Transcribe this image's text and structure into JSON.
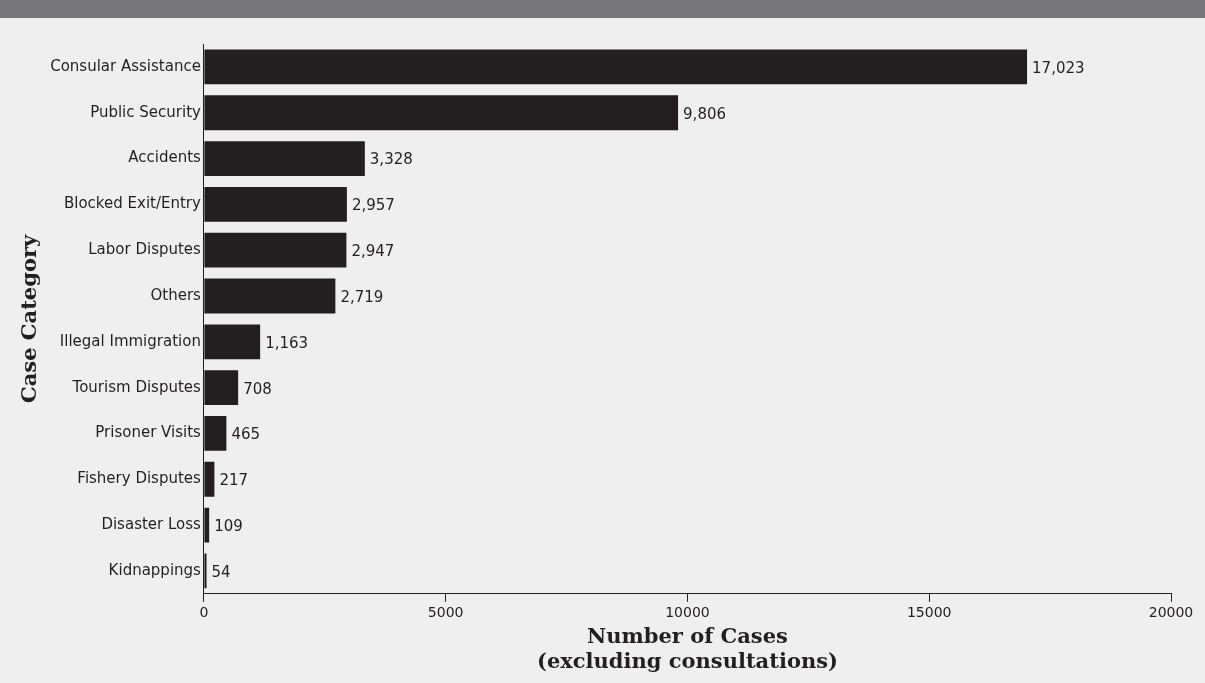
{
  "chart_data": {
    "type": "bar",
    "orientation": "horizontal",
    "xlabel": "Number of Cases\n(excluding consultations)",
    "ylabel": "Case Category",
    "categories": [
      "Consular Assistance",
      "Public Security",
      "Accidents",
      "Blocked Exit/Entry",
      "Labor Disputes",
      "Others",
      "Illegal Immigration",
      "Tourism Disputes",
      "Prisoner Visits",
      "Fishery Disputes",
      "Disaster Loss",
      "Kidnappings"
    ],
    "values": [
      17023,
      9806,
      3328,
      2957,
      2947,
      2719,
      1163,
      708,
      465,
      217,
      109,
      54
    ],
    "value_labels": [
      "17,023",
      "9,806",
      "3,328",
      "2,957",
      "2,947",
      "2,719",
      "1,163",
      "708",
      "465",
      "217",
      "109",
      "54"
    ],
    "color": "#231f20",
    "xlim": [
      0,
      20000
    ],
    "xticks": [
      0,
      5000,
      10000,
      15000,
      20000
    ],
    "grid": false,
    "legend": false
  }
}
